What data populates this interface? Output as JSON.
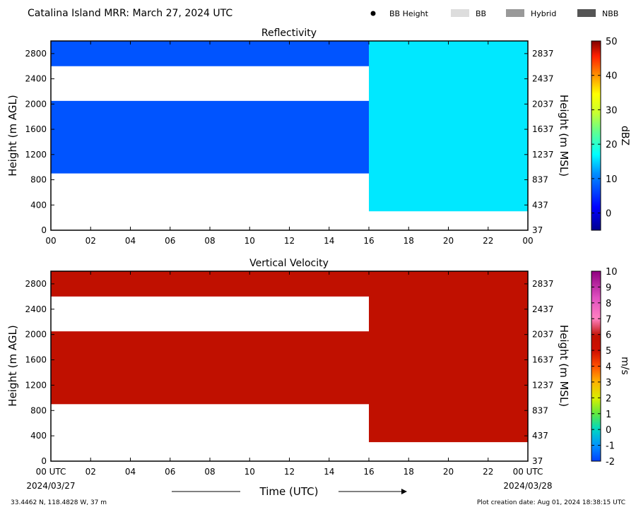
{
  "header": {
    "title": "Catalina Island MRR:  March 27, 2024 UTC",
    "legend": [
      {
        "label": "BB Height",
        "kind": "dot",
        "color": "#000000"
      },
      {
        "label": "BB",
        "kind": "swatch",
        "color": "#dddddd"
      },
      {
        "label": "Hybrid",
        "kind": "swatch",
        "color": "#999999"
      },
      {
        "label": "NBB",
        "kind": "swatch",
        "color": "#555555"
      }
    ]
  },
  "x_axis": {
    "ticks": [
      "00",
      "02",
      "04",
      "06",
      "08",
      "10",
      "12",
      "14",
      "16",
      "18",
      "20",
      "22",
      "00"
    ],
    "bottom_ticks": [
      "00 UTC",
      "02",
      "04",
      "06",
      "08",
      "10",
      "12",
      "14",
      "16",
      "18",
      "20",
      "22",
      "00 UTC"
    ],
    "start_date": "2024/03/27",
    "end_date": "2024/03/28",
    "label": "Time (UTC)"
  },
  "footer": {
    "location": "33.4462 N, 118.4828 W, 37 m",
    "creation": "Plot creation date: Aug 01, 2024 18:38:15 UTC"
  },
  "chart_data": [
    {
      "type": "heatmap",
      "title": "Reflectivity",
      "ylabel": "Height (m AGL)",
      "ylabel_right": "Height (m MSL)",
      "xlim": [
        0,
        24
      ],
      "ylim": [
        0,
        3000
      ],
      "yticks": [
        0,
        400,
        800,
        1200,
        1600,
        2000,
        2400,
        2800
      ],
      "yticks_right": [
        "37",
        "437",
        "837",
        "1237",
        "1637",
        "2037",
        "2437",
        "2837"
      ],
      "colorbar": {
        "label": "dBZ",
        "min": -5,
        "max": 50,
        "ticks": [
          0,
          10,
          20,
          30,
          40,
          50
        ]
      },
      "segments": [
        {
          "t0": 0,
          "t1": 16,
          "bottom": 900,
          "top": 3000,
          "value": 3,
          "gap": [
            2050,
            2600
          ]
        },
        {
          "t0": 16,
          "t1": 24,
          "bottom": 300,
          "top": 3000,
          "value": 9
        }
      ]
    },
    {
      "type": "heatmap",
      "title": "Vertical Velocity",
      "ylabel": "Height (m AGL)",
      "ylabel_right": "Height (m MSL)",
      "xlim": [
        0,
        24
      ],
      "ylim": [
        0,
        3000
      ],
      "yticks": [
        0,
        400,
        800,
        1200,
        1600,
        2000,
        2400,
        2800
      ],
      "yticks_right": [
        "37",
        "437",
        "837",
        "1237",
        "1637",
        "2037",
        "2437",
        "2837"
      ],
      "colorbar": {
        "label": "m/s",
        "min": -2,
        "max": 10,
        "ticks": [
          -2,
          -1,
          0,
          1,
          2,
          3,
          4,
          5,
          6,
          7,
          8,
          9,
          10
        ]
      },
      "segments": [
        {
          "t0": 0,
          "t1": 16,
          "bottom": 900,
          "top": 3000,
          "value": 6,
          "gap": [
            2050,
            2600
          ]
        },
        {
          "t0": 16,
          "t1": 24,
          "bottom": 300,
          "top": 3000,
          "value": 6
        }
      ]
    }
  ]
}
